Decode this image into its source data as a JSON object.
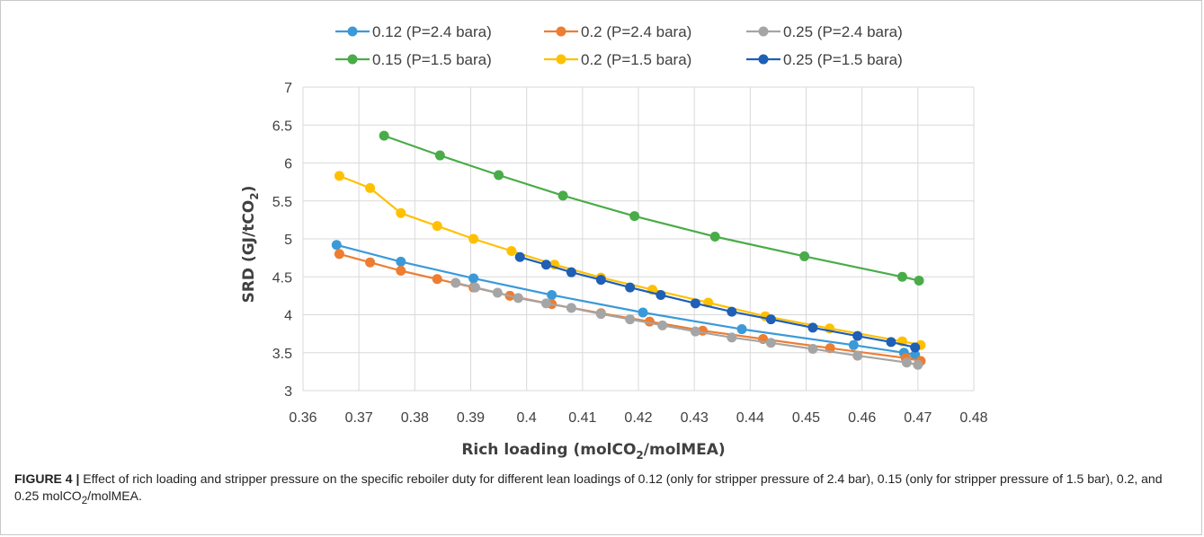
{
  "chart_data": {
    "type": "line",
    "title": "",
    "xlabel": {
      "pre": "Rich loading (molCO",
      "sub": "2",
      "post": "/molMEA)"
    },
    "ylabel": {
      "pre": "SRD (GJ/tCO",
      "sub": "2",
      "post": ")"
    },
    "xlim": [
      0.36,
      0.48
    ],
    "ylim": [
      3,
      7
    ],
    "xticks": [
      "0.36",
      "0.37",
      "0.38",
      "0.39",
      "0.4",
      "0.41",
      "0.42",
      "0.43",
      "0.44",
      "0.45",
      "0.46",
      "0.47",
      "0.48"
    ],
    "yticks": [
      "3",
      "3.5",
      "4",
      "4.5",
      "5",
      "5.5",
      "6",
      "6.5",
      "7"
    ],
    "grid": true,
    "legend_position": "top",
    "series": [
      {
        "name": "0.12 (P=2.4 bara)",
        "color": "#3a9ad9",
        "x": [
          0.366,
          0.3775,
          0.3905,
          0.4045,
          0.4208,
          0.4385,
          0.4585,
          0.4675,
          0.4695
        ],
        "y": [
          4.92,
          4.7,
          4.48,
          4.26,
          4.03,
          3.81,
          3.6,
          3.5,
          3.47
        ]
      },
      {
        "name": "0.2 (P=2.4 bara)",
        "color": "#ed7d31",
        "x": [
          0.3665,
          0.372,
          0.3775,
          0.384,
          0.3905,
          0.397,
          0.4045,
          0.4133,
          0.422,
          0.4315,
          0.4423,
          0.4543,
          0.4678,
          0.4705
        ],
        "y": [
          4.8,
          4.69,
          4.58,
          4.47,
          4.36,
          4.25,
          4.14,
          4.02,
          3.91,
          3.79,
          3.68,
          3.56,
          3.43,
          3.39
        ]
      },
      {
        "name": "0.25 (P=2.4 bara)",
        "color": "#a5a5a5",
        "x": [
          0.3873,
          0.3908,
          0.3948,
          0.3985,
          0.4035,
          0.408,
          0.4133,
          0.4185,
          0.4243,
          0.4302,
          0.4367,
          0.4437,
          0.4512,
          0.4592,
          0.468,
          0.47
        ],
        "y": [
          4.42,
          4.36,
          4.29,
          4.22,
          4.15,
          4.09,
          4.01,
          3.94,
          3.86,
          3.78,
          3.7,
          3.63,
          3.55,
          3.46,
          3.37,
          3.34
        ]
      },
      {
        "name": "0.15 (P=1.5 bara)",
        "color": "#4aac48",
        "x": [
          0.3745,
          0.3845,
          0.395,
          0.4065,
          0.4193,
          0.4337,
          0.4497,
          0.4672,
          0.4702
        ],
        "y": [
          6.36,
          6.1,
          5.84,
          5.57,
          5.3,
          5.03,
          4.77,
          4.5,
          4.45
        ]
      },
      {
        "name": "0.2 (P=1.5 bara)",
        "color": "#ffc000",
        "x": [
          0.3665,
          0.372,
          0.3775,
          0.384,
          0.3905,
          0.3973,
          0.405,
          0.4133,
          0.4225,
          0.4325,
          0.4427,
          0.4542,
          0.4672,
          0.4705
        ],
        "y": [
          5.83,
          5.67,
          5.34,
          5.17,
          5.0,
          4.84,
          4.66,
          4.49,
          4.33,
          4.16,
          3.98,
          3.82,
          3.65,
          3.6
        ]
      },
      {
        "name": "0.25 (P=1.5 bara)",
        "color": "#1f5fb5",
        "x": [
          0.3988,
          0.4035,
          0.408,
          0.4133,
          0.4185,
          0.424,
          0.4302,
          0.4367,
          0.4437,
          0.4512,
          0.4592,
          0.4652,
          0.4695
        ],
        "y": [
          4.76,
          4.66,
          4.56,
          4.46,
          4.36,
          4.26,
          4.15,
          4.04,
          3.94,
          3.83,
          3.72,
          3.64,
          3.57
        ]
      }
    ]
  },
  "caption": {
    "label": "FIGURE 4 |",
    "text_before": " Effect of rich loading and stripper pressure on the specific reboiler duty for different lean loadings of 0.12 (only for stripper pressure of 2.4 bar), 0.15 (only for stripper pressure of 1.5 bar), 0.2, and 0.25 molCO",
    "sub": "2",
    "text_after": "/molMEA."
  }
}
